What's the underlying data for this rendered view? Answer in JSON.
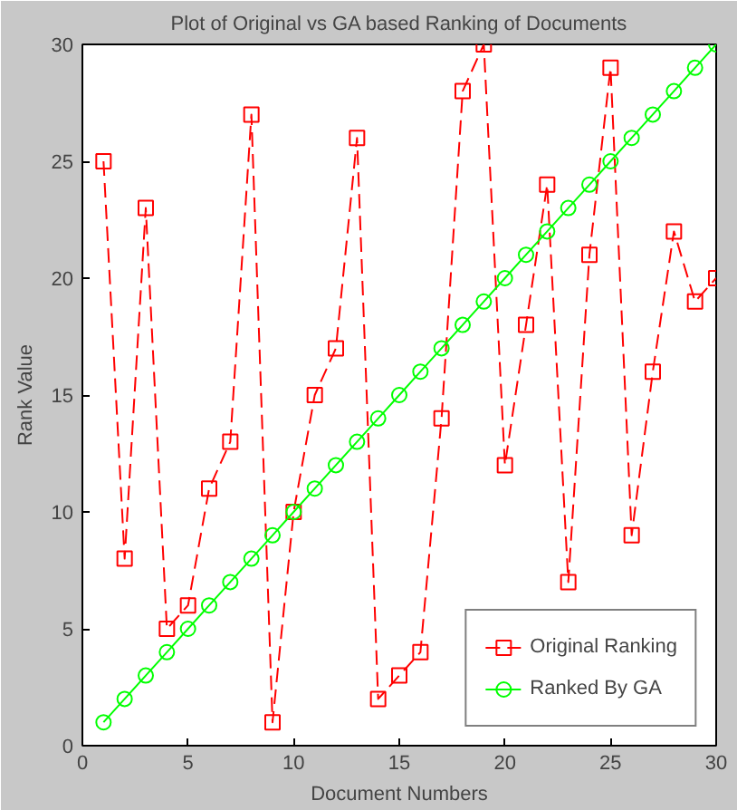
{
  "chart_data": {
    "type": "line",
    "title": "Plot of Original vs GA based Ranking of Documents",
    "xlabel": "Document Numbers",
    "ylabel": "Rank Value",
    "x": [
      1,
      2,
      3,
      4,
      5,
      6,
      7,
      8,
      9,
      10,
      11,
      12,
      13,
      14,
      15,
      16,
      17,
      18,
      19,
      20,
      21,
      22,
      23,
      24,
      25,
      26,
      27,
      28,
      29,
      30
    ],
    "series": [
      {
        "name": "Original Ranking",
        "color": "#ff0000",
        "marker": "square",
        "line_style": "dashed",
        "values": [
          25,
          8,
          23,
          5,
          6,
          11,
          13,
          27,
          1,
          10,
          15,
          17,
          26,
          2,
          3,
          4,
          14,
          28,
          30,
          12,
          18,
          24,
          7,
          21,
          29,
          9,
          16,
          22,
          19,
          20
        ]
      },
      {
        "name": "Ranked By GA",
        "color": "#00ff00",
        "marker": "circle",
        "line_style": "solid",
        "values": [
          1,
          2,
          3,
          4,
          5,
          6,
          7,
          8,
          9,
          10,
          11,
          12,
          13,
          14,
          15,
          16,
          17,
          18,
          19,
          20,
          21,
          22,
          23,
          24,
          25,
          26,
          27,
          28,
          29,
          30
        ]
      }
    ],
    "xlim": [
      0,
      30
    ],
    "ylim": [
      0,
      30
    ],
    "xticks": [
      0,
      5,
      10,
      15,
      20,
      25,
      30
    ],
    "yticks": [
      0,
      5,
      10,
      15,
      20,
      25,
      30
    ],
    "grid": false,
    "legend": "bottom right"
  }
}
